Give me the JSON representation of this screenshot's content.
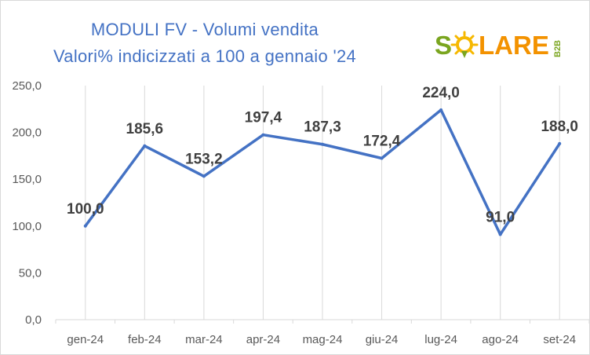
{
  "chart_data": {
    "type": "line",
    "title": "MODULI FV - Volumi vendita",
    "subtitle": "Valori% indicizzati a 100 a gennaio '24",
    "categories": [
      "gen-24",
      "feb-24",
      "mar-24",
      "apr-24",
      "mag-24",
      "giu-24",
      "lug-24",
      "ago-24",
      "set-24"
    ],
    "series": [
      {
        "values": [
          100.0,
          185.6,
          153.2,
          197.4,
          187.3,
          172.4,
          224.0,
          91.0,
          188.0
        ],
        "data_labels": [
          "100,0",
          "185,6",
          "153,2",
          "197,4",
          "187,3",
          "172,4",
          "224,0",
          "91,0",
          "188,0"
        ],
        "color": "#4472c4"
      }
    ],
    "yticks": [
      0,
      50,
      100,
      150,
      200,
      250
    ],
    "ytick_labels": [
      "0,0",
      "50,0",
      "100,0",
      "150,0",
      "200,0",
      "250,0"
    ],
    "ylim": [
      0,
      250
    ],
    "xlabel": "",
    "ylabel": "",
    "grid": "vertical",
    "legend": "none"
  },
  "logo": {
    "text_before": "S",
    "text_after": "LARE",
    "badge": "B2B",
    "color_green": "#7aa51f",
    "color_orange": "#f39200",
    "color_sun": "#f6b800"
  },
  "colors": {
    "title": "#4472c4",
    "line": "#4472c4",
    "grid": "#d9d9d9",
    "axis_text": "#595959",
    "data_label": "#404040"
  }
}
